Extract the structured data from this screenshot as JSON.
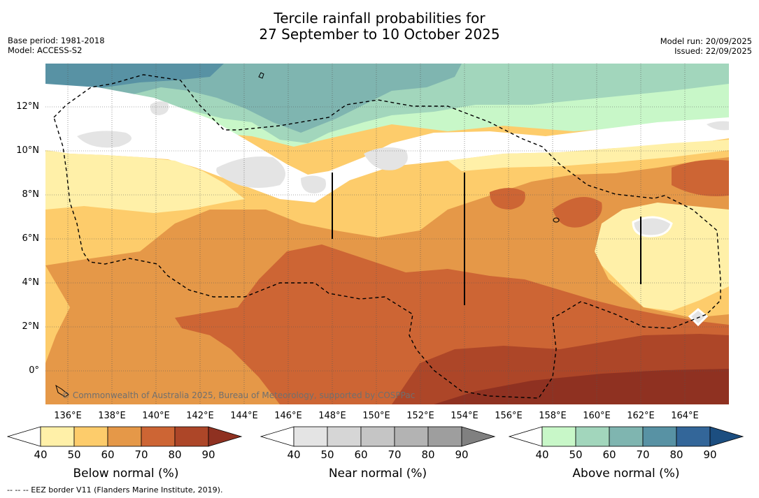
{
  "header": {
    "title_line1": "Tercile rainfall probabilities for",
    "title_line2": "27 September to 10 October 2025",
    "base_period": "Base period: 1981-2018",
    "model": "Model: ACCESS-S2",
    "model_run": "Model run: 20/09/2025",
    "issued": "Issued: 22/09/2025"
  },
  "map": {
    "lat_labels": [
      "12°N",
      "10°N",
      "8°N",
      "6°N",
      "4°N",
      "2°N",
      "0°"
    ],
    "lon_labels": [
      "136°E",
      "138°E",
      "140°E",
      "142°E",
      "144°E",
      "146°E",
      "148°E",
      "150°E",
      "152°E",
      "154°E",
      "156°E",
      "158°E",
      "160°E",
      "162°E",
      "164°E"
    ],
    "copyright": "© Commonwealth of Australia 2025, Bureau of Meteorology, supported by COSPPac"
  },
  "colorbars": [
    {
      "title": "Below normal (%)",
      "labels": [
        "40",
        "50",
        "60",
        "70",
        "80",
        "90"
      ],
      "colors": [
        "#ffffff",
        "#fff0a8",
        "#fdcc6b",
        "#e59848",
        "#cd6534",
        "#ad4628",
        "#8f3121"
      ]
    },
    {
      "title": "Near normal (%)",
      "labels": [
        "40",
        "50",
        "60",
        "70",
        "80",
        "90"
      ],
      "colors": [
        "#ffffff",
        "#e4e4e4",
        "#d6d6d6",
        "#c5c5c5",
        "#b3b3b3",
        "#9e9e9e",
        "#808080"
      ]
    },
    {
      "title": "Above normal (%)",
      "labels": [
        "40",
        "50",
        "60",
        "70",
        "80",
        "90"
      ],
      "colors": [
        "#ffffff",
        "#c8f7c8",
        "#a2d6bc",
        "#7fb5b0",
        "#5892a4",
        "#336699",
        "#1c4e80"
      ]
    }
  ],
  "footnote": "--  --  -- EEZ border V11 (Flanders Marine Institute, 2019)."
}
